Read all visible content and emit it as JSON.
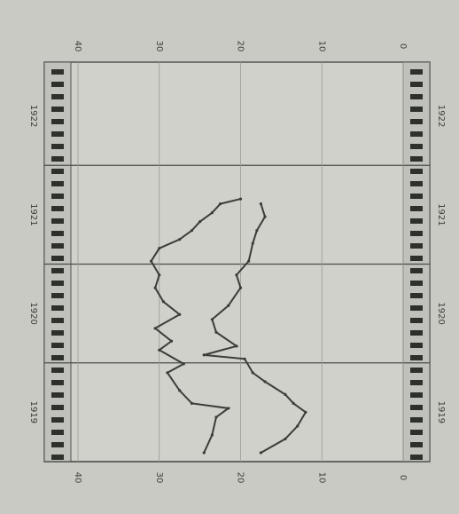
{
  "chart_data": {
    "type": "line",
    "xlim": [
      1919,
      1923
    ],
    "xticks": [
      1919,
      1920,
      1921,
      1922
    ],
    "ylim": [
      0,
      40
    ],
    "yticks": [
      40,
      30,
      20,
      10,
      0
    ],
    "grid": true,
    "series": [
      {
        "color": "#3a3d38",
        "x": [
          1919.09,
          1919.27,
          1919.45,
          1919.54,
          1919.59,
          1919.72,
          1919.9,
          1919.99,
          1920.13,
          1920.22,
          1920.35,
          1920.49,
          1920.62,
          1920.76,
          1920.89,
          1921.03,
          1921.16,
          1921.25,
          1921.34,
          1921.43,
          1921.52,
          1921.61,
          1921.66
        ],
        "values": [
          24.5,
          23.5,
          23,
          21.5,
          26,
          27.5,
          29,
          27,
          30,
          28.5,
          30.5,
          27.5,
          29.5,
          30.5,
          30,
          31,
          30,
          27.5,
          26,
          25,
          23.5,
          22.5,
          20
        ]
      },
      {
        "color": "#3a3d38",
        "x": [
          1919.09,
          1919.23,
          1919.36,
          1919.5,
          1919.59,
          1919.68,
          1919.81,
          1919.9,
          1920.04,
          1920.08,
          1920.17,
          1920.31,
          1920.44,
          1920.58,
          1920.76,
          1920.89,
          1921.03,
          1921.21,
          1921.34,
          1921.48,
          1921.61
        ],
        "values": [
          17.5,
          14.5,
          13,
          12,
          13.5,
          14.5,
          17,
          18.5,
          19.5,
          24.5,
          20.5,
          23,
          23.5,
          21.5,
          20,
          20.5,
          19,
          18.5,
          18,
          17,
          17.5
        ]
      }
    ]
  }
}
